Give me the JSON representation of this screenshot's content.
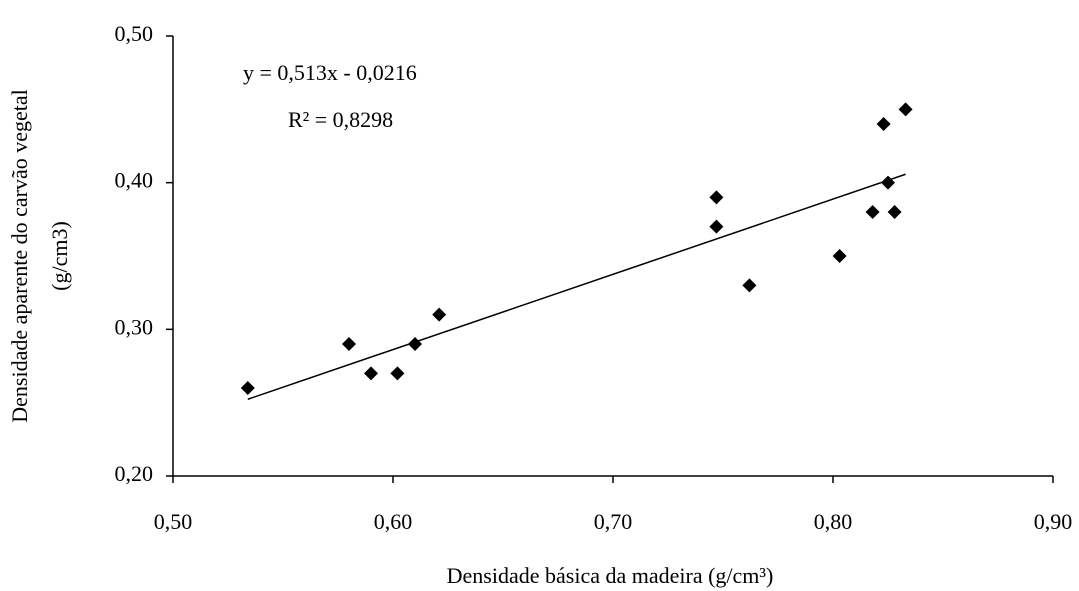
{
  "chart_data": {
    "type": "scatter",
    "xlabel": "Densidade básica da madeira (g/cm³)",
    "ylabel": [
      "Densidade aparente do carvão vegetal",
      "(g/cm3)"
    ],
    "equation": "y = 0,513x - 0,0216",
    "r2_label": "R² = 0,8298",
    "trendline": {
      "slope": 0.513,
      "intercept": -0.0216
    },
    "color": "#000000",
    "x": [
      0.534,
      0.58,
      0.59,
      0.602,
      0.61,
      0.621,
      0.747,
      0.747,
      0.762,
      0.803,
      0.818,
      0.823,
      0.825,
      0.828,
      0.833
    ],
    "y": [
      0.26,
      0.29,
      0.27,
      0.27,
      0.29,
      0.31,
      0.39,
      0.37,
      0.33,
      0.35,
      0.38,
      0.44,
      0.4,
      0.38,
      0.45
    ],
    "xlim": [
      0.5,
      0.9
    ],
    "xticks": [
      {
        "value": 0.5,
        "label": "0,50"
      },
      {
        "value": 0.6,
        "label": "0,60"
      },
      {
        "value": 0.7,
        "label": "0,70"
      },
      {
        "value": 0.8,
        "label": "0,80"
      },
      {
        "value": 0.9,
        "label": "0,90"
      }
    ],
    "ylim": [
      0.2,
      0.5
    ],
    "yticks": [
      {
        "value": 0.2,
        "label": "0,20"
      },
      {
        "value": 0.3,
        "label": "0,30"
      },
      {
        "value": 0.4,
        "label": "0,40"
      },
      {
        "value": 0.5,
        "label": "0,50"
      }
    ]
  }
}
